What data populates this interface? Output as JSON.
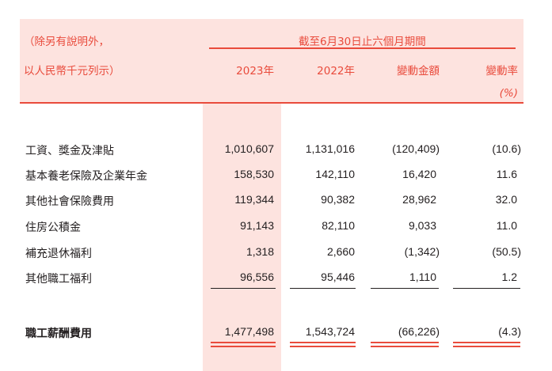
{
  "header": {
    "note_line1": "（除另有說明外，",
    "note_line2": "以人民幣千元列示）",
    "period": "截至6月30日止六個月期間",
    "columns": [
      "2023年",
      "2022年",
      "變動金額",
      "變動率"
    ],
    "pct_unit": "(%)"
  },
  "rows": [
    {
      "label": "工資、獎金及津貼",
      "v2023": "1,010,607",
      "v2022": "1,131,016",
      "change": "(120,409)",
      "rate": "(10.6)"
    },
    {
      "label": "基本養老保險及企業年金",
      "v2023": "158,530",
      "v2022": "142,110",
      "change": "16,420",
      "rate": "11.6"
    },
    {
      "label": "其他社會保險費用",
      "v2023": "119,344",
      "v2022": "90,382",
      "change": "28,962",
      "rate": "32.0"
    },
    {
      "label": "住房公積金",
      "v2023": "91,143",
      "v2022": "82,110",
      "change": "9,033",
      "rate": "11.0"
    },
    {
      "label": "補充退休福利",
      "v2023": "1,318",
      "v2022": "2,660",
      "change": "(1,342)",
      "rate": "(50.5)"
    },
    {
      "label": "其他職工福利",
      "v2023": "96,556",
      "v2022": "95,446",
      "change": "1,110",
      "rate": "1.2"
    }
  ],
  "total": {
    "label": "職工薪酬費用",
    "v2023": "1,477,498",
    "v2022": "1,543,724",
    "change": "(66,226)",
    "rate": "(4.3)"
  },
  "colors": {
    "accent": "#e94b3c",
    "highlight": "#fde3df",
    "text": "#231f20"
  }
}
